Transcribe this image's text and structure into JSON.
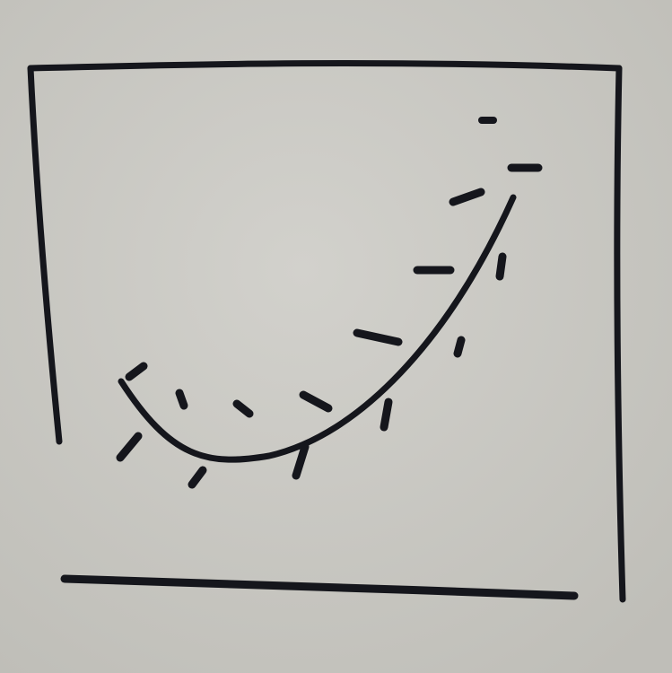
{
  "palette": {
    "paper": "#c9c8c3",
    "paper_shadow": "#bdbcb6",
    "ink": "#15161c"
  },
  "sketch": {
    "kind": "hand-drawn scatter plot with fitted curve",
    "frame_style": "open box with detached baseline",
    "curve_shape": "convex, dipping then rising"
  }
}
